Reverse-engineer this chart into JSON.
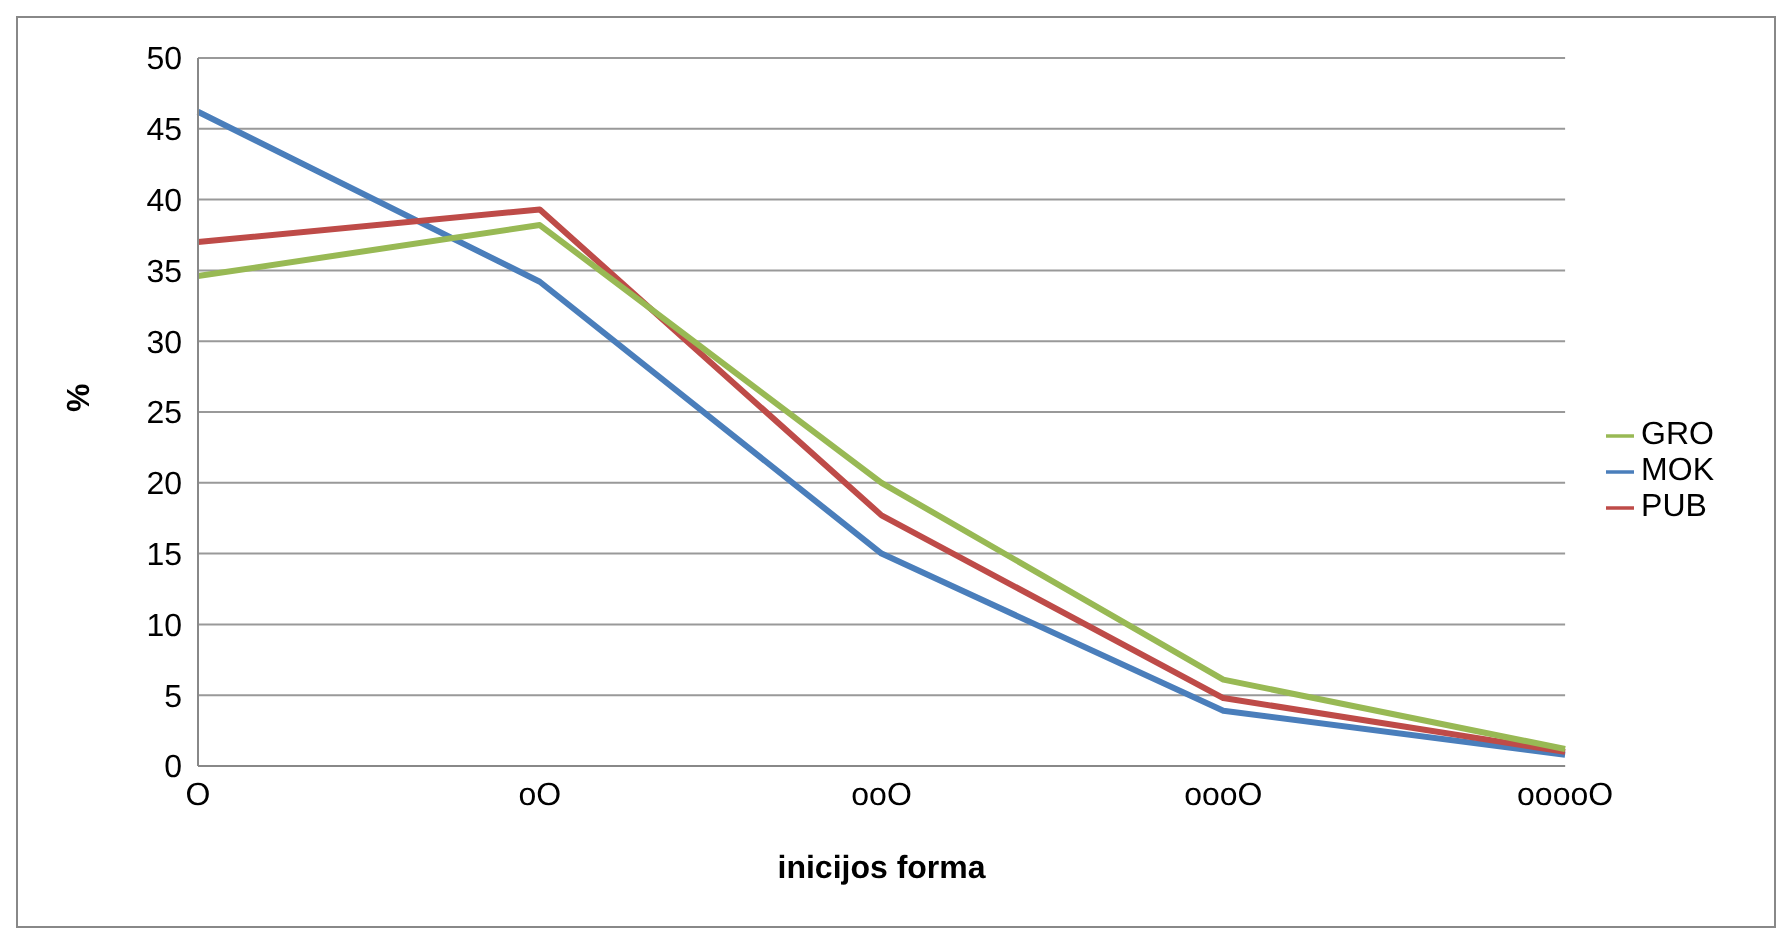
{
  "chart_data": {
    "type": "line",
    "xlabel": "inicijos forma",
    "ylabel": "%",
    "categories": [
      "O",
      "oO",
      "ooO",
      "oooO",
      "ooooO"
    ],
    "series": [
      {
        "name": "MOK",
        "color": "#4a7ebb",
        "values": [
          46.2,
          34.2,
          15,
          3.9,
          0.8
        ]
      },
      {
        "name": "PUB",
        "color": "#be4b48",
        "values": [
          37,
          39.3,
          17.7,
          4.8,
          1.0
        ]
      },
      {
        "name": "GRO",
        "color": "#98b954",
        "values": [
          34.6,
          38.2,
          20,
          6.1,
          1.2
        ]
      }
    ],
    "ylim": [
      0,
      50
    ],
    "yticks": [
      0,
      5,
      10,
      15,
      20,
      25,
      30,
      35,
      40,
      45,
      50
    ],
    "grid": "y",
    "legend": "right",
    "marker": "none",
    "line_style": "solid"
  }
}
